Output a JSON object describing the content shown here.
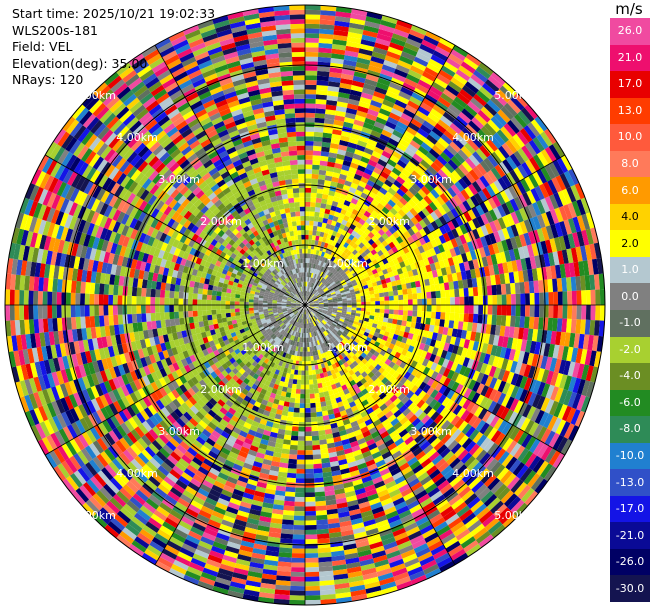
{
  "header": {
    "start_time": "Start time: 2025/10/21 19:02:33",
    "instrument": "WLS200s-181",
    "field": "Field: VEL",
    "elevation": "Elevation(deg): 35.00",
    "nrays": "NRays: 120"
  },
  "colorbar": {
    "unit": "m/s",
    "levels": [
      {
        "label": "26.0",
        "color": "#f04aa0",
        "dark": false
      },
      {
        "label": "21.0",
        "color": "#ee0f6e",
        "dark": false
      },
      {
        "label": "17.0",
        "color": "#e80000",
        "dark": false
      },
      {
        "label": "13.0",
        "color": "#ff3c00",
        "dark": false
      },
      {
        "label": "10.0",
        "color": "#ff5a3c",
        "dark": false
      },
      {
        "label": "8.0",
        "color": "#ff7a5a",
        "dark": false
      },
      {
        "label": "6.0",
        "color": "#ff9a00",
        "dark": false
      },
      {
        "label": "4.0",
        "color": "#ffd200",
        "dark": true
      },
      {
        "label": "2.0",
        "color": "#ffff00",
        "dark": true
      },
      {
        "label": "1.0",
        "color": "#b4c8d0",
        "dark": false
      },
      {
        "label": "0.0",
        "color": "#808080",
        "dark": false
      },
      {
        "label": "-1.0",
        "color": "#607060",
        "dark": false
      },
      {
        "label": "-2.0",
        "color": "#a8d030",
        "dark": false
      },
      {
        "label": "-4.0",
        "color": "#6b8e23",
        "dark": false
      },
      {
        "label": "-6.0",
        "color": "#228b22",
        "dark": false
      },
      {
        "label": "-8.0",
        "color": "#2e8b57",
        "dark": false
      },
      {
        "label": "-10.0",
        "color": "#2080d0",
        "dark": false
      },
      {
        "label": "-13.0",
        "color": "#3050c8",
        "dark": false
      },
      {
        "label": "-17.0",
        "color": "#1414e6",
        "dark": false
      },
      {
        "label": "-21.0",
        "color": "#0a0a96",
        "dark": false
      },
      {
        "label": "-26.0",
        "color": "#000064",
        "dark": false
      },
      {
        "label": "-30.0",
        "color": "#141450",
        "dark": false
      }
    ]
  },
  "chart_data": {
    "type": "heatmap",
    "title": "",
    "field": "VEL",
    "n_rays": 120,
    "max_range_km": 5.0,
    "range_rings_km": [
      1,
      2,
      3,
      4,
      5
    ],
    "ring_labels": [
      "1.00km",
      "2.00km",
      "3.00km",
      "4.00km",
      "5.00km"
    ],
    "radial_lines_deg": [
      0,
      30,
      60,
      90,
      120,
      150,
      180,
      210,
      240,
      270,
      300,
      330
    ],
    "pattern": {
      "description_values": {
        "inner_core_km": [
          0,
          0.8
        ],
        "coherent_band_km": [
          0.8,
          2.3
        ],
        "noisy_outer_km": [
          2.3,
          5.0
        ]
      },
      "approaching_side_dominant_level": "-2.0",
      "receding_side_dominant_level": "2.0",
      "near_zero_level": "0.0"
    }
  }
}
